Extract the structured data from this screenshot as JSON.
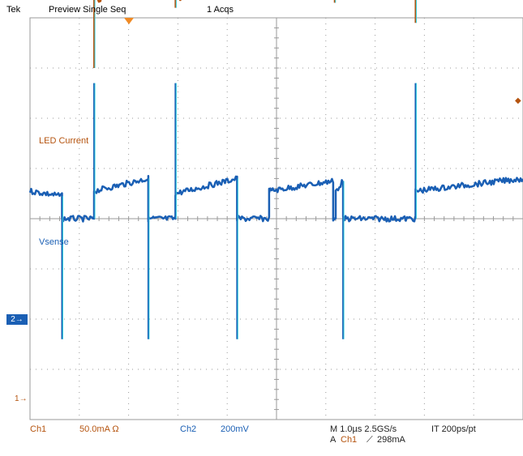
{
  "header": {
    "brand": "Tek",
    "mode": "Preview  Single Seq",
    "acquisitions": "1 Acqs"
  },
  "channels": {
    "ch1": {
      "label": "LED Current",
      "marker": "1",
      "color": "#b5540f"
    },
    "ch2": {
      "label": "Vsense",
      "marker": "2",
      "color": "#1a5fb4"
    }
  },
  "readout": {
    "ch1_name": "Ch1",
    "ch1_scale": "50.0mA  Ω",
    "ch2_name": "Ch2",
    "ch2_scale": "200mV",
    "horizontal": "M 1.0µs 2.5GS/s",
    "interpolation": "IT 200ps/pt",
    "trigger_prefix": "A",
    "trigger_source": "Ch1",
    "trigger_slope": "⟋",
    "trigger_level": "298mA"
  },
  "graticule": {
    "background": "#ffffff",
    "grid_color": "#9a9a9a",
    "trigger_marker_color": "#f08a24"
  },
  "chart_data": {
    "type": "line",
    "title": "",
    "xlabel": "",
    "ylabel": "",
    "time_per_division_us": 1.0,
    "divisions": {
      "x": 10,
      "y": 8
    },
    "x_range_us": [
      -5,
      5
    ],
    "series": [
      {
        "name": "LED Current",
        "channel": "Ch1",
        "unit": "mA",
        "scale_per_div": 50.0,
        "ground_div": -3.0,
        "points_div": [
          [
            -5.0,
            5.2
          ],
          [
            -4.55,
            6.05
          ],
          [
            -3.85,
            4.6
          ],
          [
            -3.6,
            4.35
          ],
          [
            -2.85,
            5.85
          ],
          [
            -2.15,
            4.6
          ],
          [
            -1.95,
            4.4
          ],
          [
            -1.3,
            5.8
          ],
          [
            -0.55,
            5.4
          ],
          [
            0.3,
            6.1
          ],
          [
            1.1,
            4.6
          ],
          [
            1.25,
            4.45
          ],
          [
            2.05,
            5.9
          ],
          [
            2.7,
            4.6
          ],
          [
            2.92,
            4.35
          ],
          [
            3.8,
            5.95
          ],
          [
            4.45,
            5.3
          ],
          [
            5.0,
            5.95
          ]
        ],
        "spikes_div": [
          {
            "x": -3.7,
            "top": 6.5,
            "bottom": 3.0
          },
          {
            "x": -2.05,
            "top": 6.45,
            "bottom": 4.2
          },
          {
            "x": 1.18,
            "top": 6.4,
            "bottom": 4.3
          },
          {
            "x": 2.82,
            "top": 6.5,
            "bottom": 3.9
          }
        ]
      },
      {
        "name": "Vsense",
        "channel": "Ch2",
        "unit": "mV",
        "scale_per_div": 200,
        "ground_div": -1.0,
        "points_div": [
          [
            -5.0,
            0.55
          ],
          [
            -4.35,
            0.45
          ],
          [
            -4.35,
            0.0
          ],
          [
            -3.7,
            0.0
          ],
          [
            -3.7,
            0.55
          ],
          [
            -2.6,
            0.8
          ],
          [
            -2.6,
            0.0
          ],
          [
            -2.05,
            0.0
          ],
          [
            -2.05,
            0.5
          ],
          [
            -0.8,
            0.8
          ],
          [
            -0.8,
            0.0
          ],
          [
            -0.15,
            0.0
          ],
          [
            -0.15,
            0.55
          ],
          [
            1.15,
            0.75
          ],
          [
            1.15,
            0.0
          ],
          [
            1.2,
            0.0
          ],
          [
            1.2,
            0.55
          ],
          [
            1.35,
            0.75
          ],
          [
            1.35,
            0.0
          ],
          [
            2.82,
            0.0
          ],
          [
            2.82,
            0.55
          ],
          [
            5.0,
            0.8
          ]
        ],
        "spikes_div": [
          {
            "x": -4.35,
            "top": 0.45,
            "bottom": -2.4
          },
          {
            "x": -3.7,
            "top": 2.7,
            "bottom": 0.0
          },
          {
            "x": -2.6,
            "top": 0.8,
            "bottom": -2.4
          },
          {
            "x": -2.05,
            "top": 2.7,
            "bottom": 0.0
          },
          {
            "x": -0.8,
            "top": 0.8,
            "bottom": -2.4
          },
          {
            "x": 1.35,
            "top": 0.75,
            "bottom": -2.4
          },
          {
            "x": 2.82,
            "top": 2.7,
            "bottom": 0.0
          }
        ]
      }
    ]
  }
}
